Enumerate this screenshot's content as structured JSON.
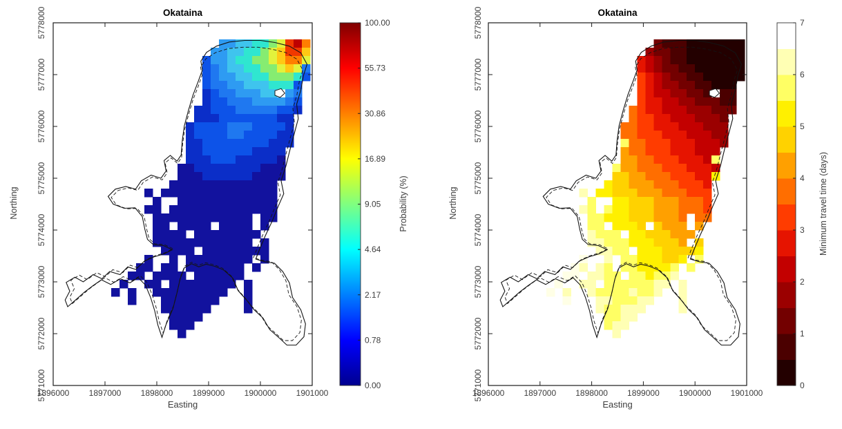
{
  "figure": {
    "background": "#ffffff"
  },
  "chart_data": {
    "type": "heatmap",
    "shared": {
      "xlabel": "Easting",
      "ylabel": "Northing",
      "xlim": [
        1896000,
        1901000
      ],
      "ylim": [
        5771000,
        5778000
      ],
      "xticks": [
        1896000,
        1897000,
        1898000,
        1899000,
        1900000,
        1901000
      ],
      "xtick_labels": [
        "1896000",
        "1897000",
        "1898000",
        "1899000",
        "1900000",
        "1901000"
      ],
      "yticks": [
        5771000,
        5772000,
        5773000,
        5774000,
        5775000,
        5776000,
        5777000,
        5778000
      ],
      "ytick_labels": [
        "5771000",
        "5772000",
        "5773000",
        "5774000",
        "5775000",
        "5776000",
        "5777000",
        "5778000"
      ],
      "outline_color": "#141414",
      "grid": {
        "easting_origin": 1897120,
        "northing_origin": 5777680,
        "cell_m": 160,
        "ncols": 24,
        "nrows": 36
      },
      "lake_outline": [
        [
          1898880,
          5777090
        ],
        [
          1898850,
          5777260
        ],
        [
          1898960,
          5777430
        ],
        [
          1899150,
          5777550
        ],
        [
          1899400,
          5777630
        ],
        [
          1899700,
          5777660
        ],
        [
          1900000,
          5777660
        ],
        [
          1900280,
          5777620
        ],
        [
          1900560,
          5777550
        ],
        [
          1900780,
          5777420
        ],
        [
          1900900,
          5777200
        ],
        [
          1900830,
          5776980
        ],
        [
          1900780,
          5776700
        ],
        [
          1900700,
          5776430
        ],
        [
          1900730,
          5776150
        ],
        [
          1900650,
          5775850
        ],
        [
          1900570,
          5775550
        ],
        [
          1900490,
          5775230
        ],
        [
          1900400,
          5774950
        ],
        [
          1900450,
          5774700
        ],
        [
          1900340,
          5774450
        ],
        [
          1900230,
          5774180
        ],
        [
          1900090,
          5773880
        ],
        [
          1899980,
          5773620
        ],
        [
          1899910,
          5773440
        ],
        [
          1900080,
          5773390
        ],
        [
          1900270,
          5773360
        ],
        [
          1900430,
          5773200
        ],
        [
          1900560,
          5772980
        ],
        [
          1900620,
          5772700
        ],
        [
          1900780,
          5772460
        ],
        [
          1900870,
          5772190
        ],
        [
          1900840,
          5771940
        ],
        [
          1900690,
          5771780
        ],
        [
          1900510,
          5771780
        ],
        [
          1900360,
          5771920
        ],
        [
          1900180,
          5772080
        ],
        [
          1900050,
          5772300
        ],
        [
          1899880,
          5772460
        ],
        [
          1899740,
          5772640
        ],
        [
          1899570,
          5772830
        ],
        [
          1899470,
          5773070
        ],
        [
          1899290,
          5773230
        ],
        [
          1899120,
          5773300
        ],
        [
          1898950,
          5773340
        ],
        [
          1898810,
          5773290
        ],
        [
          1898670,
          5773350
        ],
        [
          1898530,
          5773270
        ],
        [
          1898450,
          5773060
        ],
        [
          1898390,
          5772790
        ],
        [
          1898310,
          5772480
        ],
        [
          1898180,
          5772180
        ],
        [
          1898100,
          5771930
        ],
        [
          1898020,
          5772170
        ],
        [
          1897960,
          5772440
        ],
        [
          1897880,
          5772700
        ],
        [
          1897780,
          5772940
        ],
        [
          1897640,
          5773080
        ],
        [
          1897480,
          5772980
        ],
        [
          1897300,
          5773060
        ],
        [
          1897110,
          5772950
        ],
        [
          1896930,
          5773040
        ],
        [
          1896760,
          5772920
        ],
        [
          1896600,
          5772800
        ],
        [
          1896430,
          5772650
        ],
        [
          1896280,
          5772520
        ],
        [
          1896230,
          5772650
        ],
        [
          1896320,
          5772820
        ],
        [
          1896250,
          5772990
        ],
        [
          1896420,
          5773090
        ],
        [
          1896580,
          5773000
        ],
        [
          1896770,
          5773140
        ],
        [
          1896940,
          5773060
        ],
        [
          1897090,
          5773200
        ],
        [
          1897290,
          5773140
        ],
        [
          1897440,
          5773290
        ],
        [
          1897590,
          5773240
        ],
        [
          1897760,
          5773400
        ],
        [
          1897940,
          5773480
        ],
        [
          1898140,
          5773540
        ],
        [
          1898300,
          5773620
        ],
        [
          1898130,
          5773700
        ],
        [
          1897930,
          5773720
        ],
        [
          1897820,
          5773820
        ],
        [
          1897770,
          5774010
        ],
        [
          1897720,
          5774260
        ],
        [
          1897580,
          5774430
        ],
        [
          1897370,
          5774420
        ],
        [
          1897160,
          5774500
        ],
        [
          1897060,
          5774650
        ],
        [
          1897200,
          5774790
        ],
        [
          1897400,
          5774840
        ],
        [
          1897590,
          5774790
        ],
        [
          1897700,
          5774950
        ],
        [
          1897890,
          5775060
        ],
        [
          1898080,
          5775000
        ],
        [
          1898180,
          5775140
        ],
        [
          1898140,
          5775340
        ],
        [
          1898260,
          5775440
        ],
        [
          1898390,
          5775330
        ],
        [
          1898470,
          5775450
        ],
        [
          1898490,
          5775720
        ],
        [
          1898530,
          5776010
        ],
        [
          1898610,
          5776310
        ],
        [
          1898700,
          5776610
        ],
        [
          1898800,
          5776870
        ]
      ],
      "island_outline": [
        [
          1900280,
          5776690
        ],
        [
          1900400,
          5776730
        ],
        [
          1900470,
          5776640
        ],
        [
          1900380,
          5776560
        ],
        [
          1900280,
          5776600
        ]
      ]
    },
    "maps": [
      {
        "title": "Okataina",
        "colorbar": {
          "label": "Probability (%)",
          "type": "continuous",
          "tick_labels": [
            "0.00",
            "0.78",
            "2.17",
            "4.64",
            "9.05",
            "16.89",
            "30.86",
            "55.73",
            "100.00"
          ],
          "gradient_stops": [
            [
              0,
              "#00008F"
            ],
            [
              0.125,
              "#0000FF"
            ],
            [
              0.375,
              "#00FFFF"
            ],
            [
              0.625,
              "#FFFF00"
            ],
            [
              0.875,
              "#FF0000"
            ],
            [
              1,
              "#800000"
            ]
          ]
        },
        "palette": {
          "a": "#12129E",
          "b": "#0B2EC8",
          "c": "#0D53E8",
          "d": "#1F78F0",
          "e": "#2E9BF2",
          "f": "#3FC4EE",
          "g": "#2FE6D0",
          "h": "#86EC71",
          "i": "#E2F23C",
          "j": "#FFC814",
          "k": "#FF7E00",
          "l": "#F03800",
          "m": "#BE0000"
        },
        "rows": [
          ".............eeffgghilmk",
          "............eeffgghijllj",
          "...........ceefgghhijkki",
          "...........cdeffgghhijid",
          "...........cdeeffgghhhgc",
          "...........cddeefffgggc.",
          "...........bcddeeeff.ed.",
          "...........bccdddeeeedc.",
          "..........bbcccdddddccb.",
          "..........bbbcccccccbb..",
          ".........bccccdddccccb..",
          ".........bccccddccccbb..",
          ".........bbccccccccbbb..",
          ".........bbccccccbbbb...",
          ".........bbbcccbbbbba...",
          "........aabbbbbbbbaaa...",
          "........aaabbbbbbaaaa...",
          ".......aaaaaaaaaaaaa....",
          "....a.aaaaaaaaaaaaaa....",
          ".....a..aaaaaaaaaaaa....",
          "....aa.aaaaaaaaaaaaa....",
          ".....aaaaaaaaaaaa.aa....",
          ".....aa.aaaa.aaaa.a.....",
          ".....aaaa.aaaaaaaa......",
          ".....aaaaaaaaaaaa.a.....",
          "......aaaa.aaaaaaaa.....",
          "....a..a.aaaaaaaa.a.....",
          "...aa.aa.aaaaaaa.a......",
          "..aa.aaaa.aaaaaa........",
          ".a..aa.aaaaaaaa.a.......",
          "a.a..aaaaaaaaa..a.......",
          "..a...aaaaaaa...a.......",
          "......aaaaaa....a.......",
          ".......aaaa.............",
          ".......aaa..............",
          "........a..............."
        ]
      },
      {
        "title": "Okataina",
        "colorbar": {
          "label": "Minimum travel time (days)",
          "type": "discrete",
          "tick_labels": [
            "0",
            "1",
            "2",
            "3",
            "4",
            "5",
            "6",
            "7"
          ],
          "band_colors": [
            "#230000",
            "#4B0000",
            "#730000",
            "#9B0000",
            "#C30000",
            "#E61400",
            "#FF3C00",
            "#FF6E00",
            "#FFA000",
            "#FFD200",
            "#FFF000",
            "#FFFF64",
            "#FFFFB4",
            "#FFFFFF"
          ]
        },
        "palette": {
          "0": "#230000",
          "1": "#4B0000",
          "2": "#730000",
          "3": "#9B0000",
          "4": "#C30000",
          "5": "#E61400",
          "6": "#FF3C00",
          "7": "#FF6E00",
          "8": "#FFA000",
          "9": "#FFD200",
          "A": "#FFF000",
          "B": "#FFFF64",
          "C": "#FFFFB4",
          "D": "#FFFFE6"
        },
        "rows": [
          ".............21110000000",
          "............322110000000",
          "...........5432110000000",
          "...........5432211000000",
          "...........6543221100000",
          "...........654332211000.",
          "...........654433221.11.",
          "...........655443322211.",
          "..........7655444333222.",
          "..........766554443332..",
          ".........7766555444333..",
          ".........7766655544433..",
          ".........B776665554443..",
          ".........877666555444...",
          ".........88776665554B...",
          "........B887776665554...",
          "........998877766655A...",
          ".......A998887776665....",
          "....C.AA999888777666....",
          ".....B..AA9998887776....",
          "....CB.BAA9998887776....",
          ".....BBAAA9998887.77....",
          ".....BB.AAA9.9888.8.....",
          ".....CBBB.AA999888......",
          ".....CCBBBAAA9998.9.....",
          "......CCBB.AAA9999A.....",
          "....D..C.BBAAA99A.B.....",
          "...DC.CB.BBAAAAB.B......",
          "..DD.CCBB.BBABBC........",
          ".D..CC.BBBBBBCC.C.......",
          "D.C..CBBBBCBBC..C.......",
          "..D...CCBBBCC...C.......",
          "......CBBCCC....C.......",
          ".......BBCC.............",
          ".......BCC..............",
          "........C..............."
        ]
      }
    ]
  }
}
